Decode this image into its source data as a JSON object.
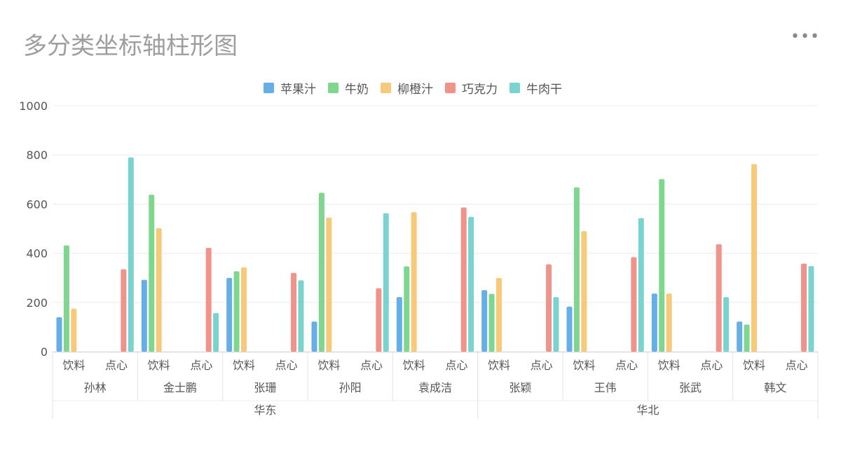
{
  "title": "多分类坐标轴柱形图",
  "menu_icon": "more-horizontal-icon",
  "colors": [
    "#66aee6",
    "#7fd68f",
    "#f7c97b",
    "#f0938a",
    "#7bd3cf"
  ],
  "chart_data": {
    "type": "bar",
    "title": "多分类坐标轴柱形图",
    "xlabel": "",
    "ylabel": "",
    "ylim": [
      0,
      1000
    ],
    "yticks": [
      0,
      200,
      400,
      600,
      800,
      1000
    ],
    "grid": true,
    "legend_position": "top-center",
    "series_names": [
      "苹果汁",
      "牛奶",
      "柳橙汁",
      "巧克力",
      "牛肉干"
    ],
    "regions": [
      {
        "name": "华东",
        "people": [
          {
            "name": "孙林",
            "groups": [
              {
                "name": "饮料",
                "values": [
                  140,
                  432,
                  175
                ]
              },
              {
                "name": "点心",
                "values": [
                  335,
                  790
                ]
              }
            ]
          },
          {
            "name": "金士鹏",
            "groups": [
              {
                "name": "饮料",
                "values": [
                  292,
                  638,
                  502
                ]
              },
              {
                "name": "点心",
                "values": [
                  422,
                  157
                ]
              }
            ]
          },
          {
            "name": "张珊",
            "groups": [
              {
                "name": "饮料",
                "values": [
                  300,
                  327,
                  343
                ]
              },
              {
                "name": "点心",
                "values": [
                  320,
                  290
                ]
              }
            ]
          },
          {
            "name": "孙阳",
            "groups": [
              {
                "name": "饮料",
                "values": [
                  122,
                  646,
                  545
                ]
              },
              {
                "name": "点心",
                "values": [
                  258,
                  563
                ]
              }
            ]
          },
          {
            "name": "袁成洁",
            "groups": [
              {
                "name": "饮料",
                "values": [
                  222,
                  347,
                  567
                ]
              },
              {
                "name": "点心",
                "values": [
                  586,
                  548
                ]
              }
            ]
          }
        ]
      },
      {
        "name": "华北",
        "people": [
          {
            "name": "张颖",
            "groups": [
              {
                "name": "饮料",
                "values": [
                  250,
                  235,
                  300
                ]
              },
              {
                "name": "点心",
                "values": [
                  355,
                  222
                ]
              }
            ]
          },
          {
            "name": "王伟",
            "groups": [
              {
                "name": "饮料",
                "values": [
                  183,
                  668,
                  490
                ]
              },
              {
                "name": "点心",
                "values": [
                  384,
                  543
                ]
              }
            ]
          },
          {
            "name": "张武",
            "groups": [
              {
                "name": "饮料",
                "values": [
                  236,
                  702,
                  236
                ]
              },
              {
                "name": "点心",
                "values": [
                  437,
                  222
                ]
              }
            ]
          },
          {
            "name": "韩文",
            "groups": [
              {
                "name": "饮料",
                "values": [
                  122,
                  110,
                  763
                ]
              },
              {
                "name": "点心",
                "values": [
                  358,
                  348
                ]
              }
            ]
          }
        ]
      }
    ]
  }
}
